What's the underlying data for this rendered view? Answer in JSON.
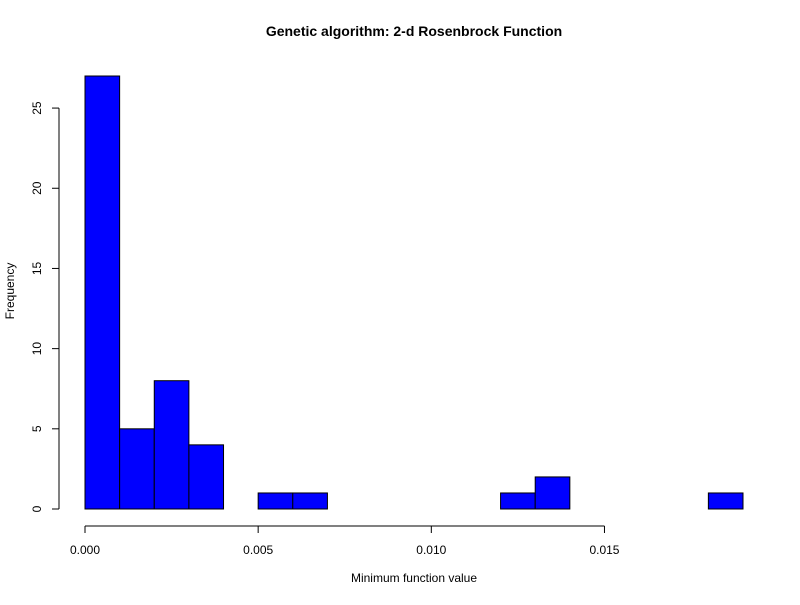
{
  "chart_data": {
    "type": "bar",
    "subtype": "histogram",
    "title": "Genetic algorithm: 2-d Rosenbrock Function",
    "xlabel": "Minimum function value",
    "ylabel": "Frequency",
    "bar_color": "#0000ff",
    "bar_edge_color": "#000000",
    "bin_width": 0.001,
    "bins": [
      {
        "start": 0.0,
        "end": 0.001,
        "count": 27
      },
      {
        "start": 0.001,
        "end": 0.002,
        "count": 5
      },
      {
        "start": 0.002,
        "end": 0.003,
        "count": 8
      },
      {
        "start": 0.003,
        "end": 0.004,
        "count": 4
      },
      {
        "start": 0.004,
        "end": 0.005,
        "count": 0
      },
      {
        "start": 0.005,
        "end": 0.006,
        "count": 1
      },
      {
        "start": 0.006,
        "end": 0.007,
        "count": 1
      },
      {
        "start": 0.007,
        "end": 0.008,
        "count": 0
      },
      {
        "start": 0.008,
        "end": 0.009,
        "count": 0
      },
      {
        "start": 0.009,
        "end": 0.01,
        "count": 0
      },
      {
        "start": 0.01,
        "end": 0.011,
        "count": 0
      },
      {
        "start": 0.011,
        "end": 0.012,
        "count": 0
      },
      {
        "start": 0.012,
        "end": 0.013,
        "count": 1
      },
      {
        "start": 0.013,
        "end": 0.014,
        "count": 2
      },
      {
        "start": 0.014,
        "end": 0.015,
        "count": 0
      },
      {
        "start": 0.015,
        "end": 0.016,
        "count": 0
      },
      {
        "start": 0.016,
        "end": 0.017,
        "count": 0
      },
      {
        "start": 0.017,
        "end": 0.018,
        "count": 0
      },
      {
        "start": 0.018,
        "end": 0.019,
        "count": 1
      }
    ],
    "xlim": [
      0.0,
      0.019
    ],
    "ylim": [
      0,
      27
    ],
    "x_ticks": [
      {
        "value": 0.0,
        "label": "0.000"
      },
      {
        "value": 0.005,
        "label": "0.005"
      },
      {
        "value": 0.01,
        "label": "0.010"
      },
      {
        "value": 0.015,
        "label": "0.015"
      }
    ],
    "y_ticks": [
      {
        "value": 0,
        "label": "0"
      },
      {
        "value": 5,
        "label": "5"
      },
      {
        "value": 10,
        "label": "10"
      },
      {
        "value": 15,
        "label": "15"
      },
      {
        "value": 20,
        "label": "20"
      },
      {
        "value": 25,
        "label": "25"
      }
    ],
    "grid": false,
    "legend": "none"
  }
}
